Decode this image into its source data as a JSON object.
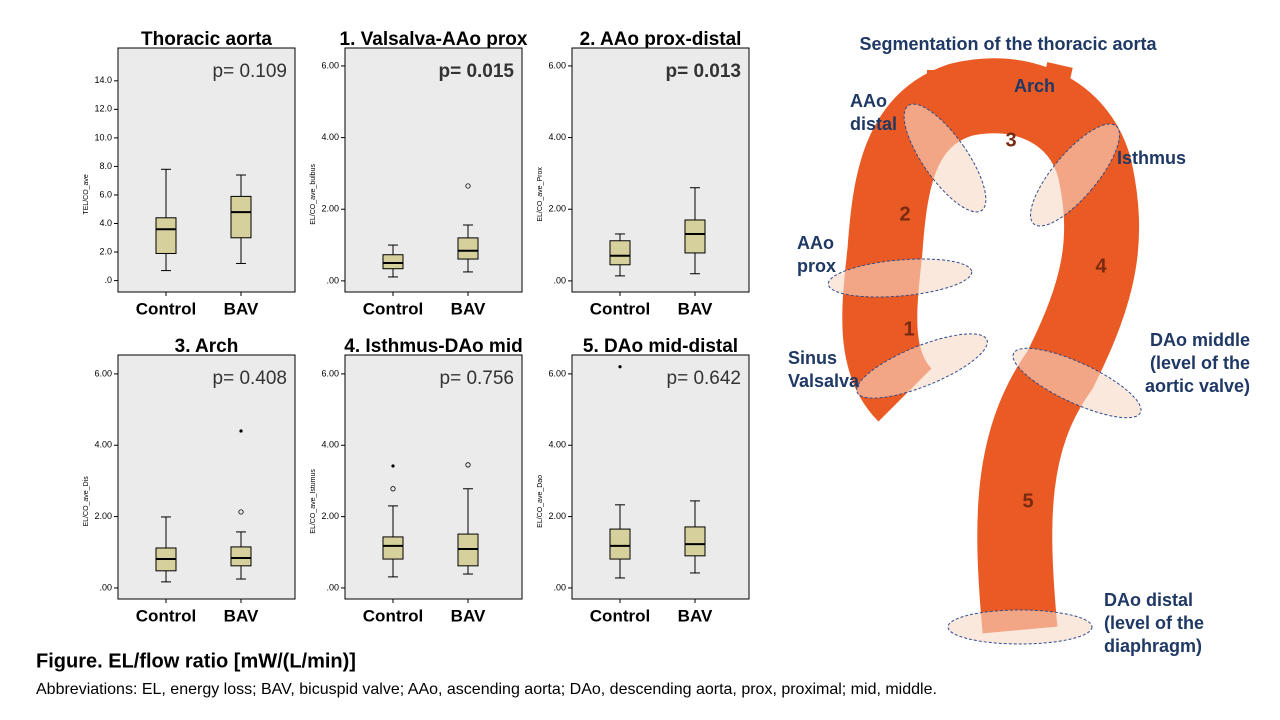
{
  "chart_data": [
    {
      "type": "box",
      "title": "Thoracic aorta",
      "y_label": "TEL/CO_ave",
      "annotation": "p= 0.109",
      "annotation_bold": false,
      "categories": [
        "Control",
        "BAV"
      ],
      "ylim": [
        -0.8,
        16.3
      ],
      "yticks": [
        {
          "value": 0,
          "label": ".0"
        },
        {
          "value": 2,
          "label": "2.0"
        },
        {
          "value": 4,
          "label": "4.0"
        },
        {
          "value": 6,
          "label": "6.0"
        },
        {
          "value": 8,
          "label": "8.0"
        },
        {
          "value": 10,
          "label": "10.0"
        },
        {
          "value": 12,
          "label": "12.0"
        },
        {
          "value": 14,
          "label": "14.0"
        }
      ],
      "color": "#d6d09c",
      "background": "#ebebeb",
      "boxes": [
        {
          "min": 0.7,
          "q1": 1.9,
          "median": 3.6,
          "q3": 4.4,
          "max": 7.8,
          "outliers": []
        },
        {
          "min": 1.2,
          "q1": 3.0,
          "median": 4.8,
          "q3": 5.9,
          "max": 7.4,
          "outliers": []
        }
      ]
    },
    {
      "type": "box",
      "title": "1. Valsalva-AAo prox",
      "y_label": "EL/CO_ave_bulbus",
      "annotation": "p= 0.015",
      "annotation_bold": true,
      "categories": [
        "Control",
        "BAV"
      ],
      "ylim": [
        -0.31,
        6.5
      ],
      "yticks": [
        {
          "value": 0,
          "label": ".00"
        },
        {
          "value": 2,
          "label": "2.00"
        },
        {
          "value": 4,
          "label": "4.00"
        },
        {
          "value": 6,
          "label": "6.00"
        }
      ],
      "color": "#d6d09c",
      "background": "#ebebeb",
      "boxes": [
        {
          "min": 0.11,
          "q1": 0.34,
          "median": 0.5,
          "q3": 0.73,
          "max": 1.0,
          "outliers": []
        },
        {
          "min": 0.25,
          "q1": 0.61,
          "median": 0.84,
          "q3": 1.2,
          "max": 1.56,
          "outliers": [
            {
              "value": 2.65,
              "marker": "circle"
            }
          ]
        }
      ]
    },
    {
      "type": "box",
      "title": "2. AAo prox-distal",
      "y_label": "EL/CO_ave_Prox",
      "annotation": "p= 0.013",
      "annotation_bold": true,
      "categories": [
        "Control",
        "BAV"
      ],
      "ylim": [
        -0.31,
        6.5
      ],
      "yticks": [
        {
          "value": 0,
          "label": ".00"
        },
        {
          "value": 2,
          "label": "2.00"
        },
        {
          "value": 4,
          "label": "4.00"
        },
        {
          "value": 6,
          "label": "6.00"
        }
      ],
      "color": "#d6d09c",
      "background": "#ebebeb",
      "boxes": [
        {
          "min": 0.14,
          "q1": 0.45,
          "median": 0.7,
          "q3": 1.12,
          "max": 1.31,
          "outliers": []
        },
        {
          "min": 0.2,
          "q1": 0.78,
          "median": 1.31,
          "q3": 1.7,
          "max": 2.6,
          "outliers": []
        }
      ]
    },
    {
      "type": "box",
      "title": "3. Arch",
      "y_label": "EL/CO_ave_Dis",
      "annotation": "p= 0.408",
      "annotation_bold": false,
      "categories": [
        "Control",
        "BAV"
      ],
      "ylim": [
        -0.31,
        6.53
      ],
      "yticks": [
        {
          "value": 0,
          "label": ".00"
        },
        {
          "value": 2,
          "label": "2.00"
        },
        {
          "value": 4,
          "label": "4.00"
        },
        {
          "value": 6,
          "label": "6.00"
        }
      ],
      "color": "#d6d09c",
      "background": "#ebebeb",
      "boxes": [
        {
          "min": 0.17,
          "q1": 0.48,
          "median": 0.81,
          "q3": 1.12,
          "max": 1.99,
          "outliers": []
        },
        {
          "min": 0.25,
          "q1": 0.62,
          "median": 0.84,
          "q3": 1.15,
          "max": 1.57,
          "outliers": [
            {
              "value": 2.13,
              "marker": "circle"
            },
            {
              "value": 4.4,
              "marker": "star"
            }
          ]
        }
      ]
    },
    {
      "type": "box",
      "title": "4. Isthmus-DAo mid",
      "y_label": "EL/CO_ave_Istumus",
      "annotation": "p= 0.756",
      "annotation_bold": false,
      "categories": [
        "Control",
        "BAV"
      ],
      "ylim": [
        -0.31,
        6.53
      ],
      "yticks": [
        {
          "value": 0,
          "label": ".00"
        },
        {
          "value": 2,
          "label": "2.00"
        },
        {
          "value": 4,
          "label": "4.00"
        },
        {
          "value": 6,
          "label": "6.00"
        }
      ],
      "color": "#d6d09c",
      "background": "#ebebeb",
      "boxes": [
        {
          "min": 0.31,
          "q1": 0.81,
          "median": 1.18,
          "q3": 1.43,
          "max": 2.3,
          "outliers": [
            {
              "value": 2.78,
              "marker": "circle"
            },
            {
              "value": 3.42,
              "marker": "star"
            }
          ]
        },
        {
          "min": 0.39,
          "q1": 0.62,
          "median": 1.09,
          "q3": 1.51,
          "max": 2.78,
          "outliers": [
            {
              "value": 3.45,
              "marker": "circle"
            }
          ]
        }
      ]
    },
    {
      "type": "box",
      "title": "5. DAo mid-distal",
      "y_label": "EL/CO_ave_Dao",
      "annotation": "p= 0.642",
      "annotation_bold": false,
      "categories": [
        "Control",
        "BAV"
      ],
      "ylim": [
        -0.31,
        6.53
      ],
      "yticks": [
        {
          "value": 0,
          "label": ".00"
        },
        {
          "value": 2,
          "label": "2.00"
        },
        {
          "value": 4,
          "label": "4.00"
        },
        {
          "value": 6,
          "label": "6.00"
        }
      ],
      "color": "#d6d09c",
      "background": "#ebebeb",
      "boxes": [
        {
          "min": 0.28,
          "q1": 0.81,
          "median": 1.18,
          "q3": 1.65,
          "max": 2.33,
          "outliers": [
            {
              "value": 6.2,
              "marker": "star"
            }
          ]
        },
        {
          "min": 0.42,
          "q1": 0.9,
          "median": 1.23,
          "q3": 1.71,
          "max": 2.44,
          "outliers": []
        }
      ]
    }
  ],
  "diagram": {
    "title": "Segmentation of the thoracic aorta",
    "labels": [
      [
        "AAo",
        "distal"
      ],
      [
        "Arch"
      ],
      [
        "Isthmus"
      ],
      [
        "AAo",
        "prox"
      ],
      [
        "Sinus",
        "Valsalva"
      ],
      [
        "DAo middle",
        "(level of the",
        "aortic valve)"
      ],
      [
        "DAo distal",
        "(level of the",
        "diaphragm)"
      ]
    ],
    "segments": [
      "1",
      "2",
      "3",
      "4",
      "5"
    ]
  },
  "caption": {
    "title": "Figure. EL/flow ratio [mW/(L/min)]",
    "text": "Abbreviations: EL, energy loss; BAV, bicuspid valve; AAo, ascending aorta; DAo, descending aorta, prox, proximal; mid, middle."
  }
}
